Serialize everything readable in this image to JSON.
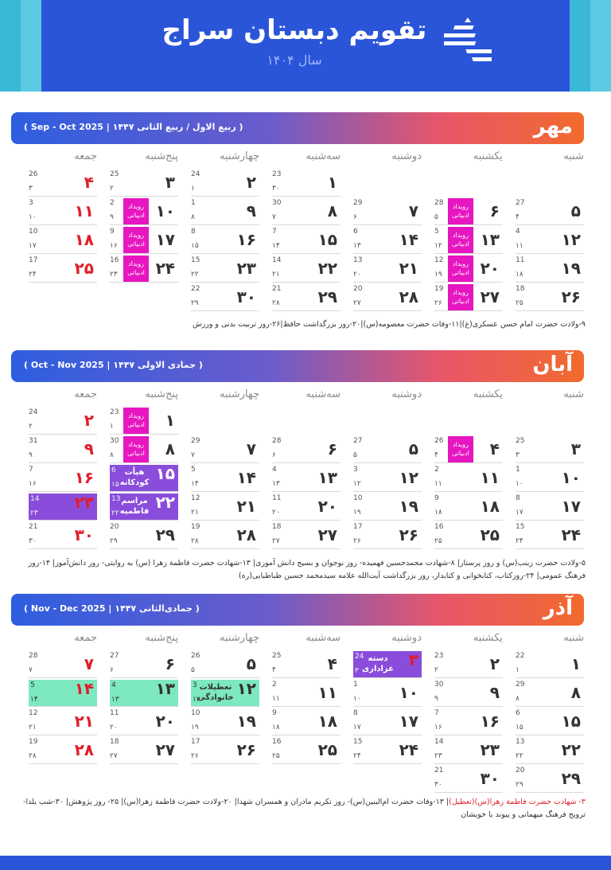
{
  "header": {
    "title": "تقویم دبستان سراج",
    "year": "سال ۱۴۰۴"
  },
  "weekdays": [
    "شنبه",
    "یکشنبه",
    "دوشنبه",
    "سه‌شنبه",
    "چهارشنبه",
    "پنج‌شنبه",
    "جمعه"
  ],
  "months": [
    {
      "name": "مهر",
      "info": "( ربیع الاول / ربیع الثانی ۱۴۴۷ | Sep - Oct 2025 )",
      "note": "۹-ولادت حضرت امام حسن عسکری(ع)|۱۱-وفات حضرت معصومه(س)|۲۰-روز بزرگداشت حافظ|۲۶-روز تربیت بدنی و ورزش"
    },
    {
      "name": "آبان",
      "info": "( جمادی الاولی ۱۴۴۷ | Oct - Nov 2025 )",
      "note": "۵-ولادت حضرت زینب(س) و روز پرستار| ۸-شهادت محمدحسین فهمیده- روز نوجوان و بسیج دانش آموزی| ۱۳-شهادت حضرت فاطمة زهرا (س) به روایتی- روز دانش‌آموز| ۱۴-روز فرهنگ عمومی| ۲۴-روزکتاب، کتابخوانی و کتابدار، روز بزرگداشت آیت‌الله علامه سیدمحمد حسین طباطبایی(ره)"
    },
    {
      "name": "آذر",
      "info": "( جمادی‌الثانی ۱۴۴۷ | Nov - Dec 2025 )",
      "note_red": "۳- شهادت حضرت فاطمة زهرا(س)(تعطیل)",
      "note": "| ۱۳-وفات حضرت ام‌البنین(س)- روز تکریم مادران و همسران شهدا| ۲۰-ولادت حضرت فاطمة زهرا(س)| ۲۵- روز پژوهش| ۳۰-شب یلدا- ترویج فرهنگ میهمانی و پیوند با خویشان"
    }
  ],
  "tags": {
    "event": "رویداد ادبیاتی",
    "kids": "هیأت کودکانه",
    "ceremony": "مراسم فاطمیه",
    "holiday_label": "تعطیلات خانوادگی",
    "mourning": "دسته عزاداری"
  },
  "mehr_cells": [
    {
      "c": 0,
      "r": 1,
      "d": "۵",
      "g": "27",
      "h": "۴"
    },
    {
      "c": 1,
      "r": 1,
      "d": "۶",
      "g": "28",
      "h": "۵",
      "tag": true
    },
    {
      "c": 2,
      "r": 1,
      "d": "۷",
      "g": "29",
      "h": "۶"
    },
    {
      "c": 3,
      "r": 0,
      "d": "۱",
      "g": "23",
      "h": "۳۰"
    },
    {
      "c": 3,
      "r": 1,
      "d": "۸",
      "g": "30",
      "h": "۷"
    },
    {
      "c": 4,
      "r": 0,
      "d": "۲",
      "g": "24",
      "h": "۱"
    },
    {
      "c": 4,
      "r": 1,
      "d": "۹",
      "g": "1",
      "h": "۸"
    },
    {
      "c": 5,
      "r": 0,
      "d": "۳",
      "g": "25",
      "h": "۲"
    },
    {
      "c": 5,
      "r": 1,
      "d": "۱۰",
      "g": "2",
      "h": "۹",
      "tag": true
    },
    {
      "c": 6,
      "r": 0,
      "d": "۴",
      "g": "26",
      "h": "۳",
      "hol": true
    },
    {
      "c": 6,
      "r": 1,
      "d": "۱۱",
      "g": "3",
      "h": "۱۰",
      "hol": true
    },
    {
      "c": 0,
      "r": 2,
      "d": "۱۲",
      "g": "4",
      "h": "۱۱"
    },
    {
      "c": 1,
      "r": 2,
      "d": "۱۳",
      "g": "5",
      "h": "۱۲",
      "tag": true
    },
    {
      "c": 2,
      "r": 2,
      "d": "۱۴",
      "g": "6",
      "h": "۱۳"
    },
    {
      "c": 3,
      "r": 2,
      "d": "۱۵",
      "g": "7",
      "h": "۱۴"
    },
    {
      "c": 4,
      "r": 2,
      "d": "۱۶",
      "g": "8",
      "h": "۱۵"
    },
    {
      "c": 5,
      "r": 2,
      "d": "۱۷",
      "g": "9",
      "h": "۱۶",
      "tag": true
    },
    {
      "c": 6,
      "r": 2,
      "d": "۱۸",
      "g": "10",
      "h": "۱۷",
      "hol": true
    },
    {
      "c": 0,
      "r": 3,
      "d": "۱۹",
      "g": "11",
      "h": "۱۸"
    },
    {
      "c": 1,
      "r": 3,
      "d": "۲۰",
      "g": "12",
      "h": "۱۹",
      "tag": true
    },
    {
      "c": 2,
      "r": 3,
      "d": "۲۱",
      "g": "13",
      "h": "۲۰"
    },
    {
      "c": 3,
      "r": 3,
      "d": "۲۲",
      "g": "14",
      "h": "۲۱"
    },
    {
      "c": 4,
      "r": 3,
      "d": "۲۳",
      "g": "15",
      "h": "۲۲"
    },
    {
      "c": 5,
      "r": 3,
      "d": "۲۴",
      "g": "16",
      "h": "۲۳",
      "tag": true
    },
    {
      "c": 6,
      "r": 3,
      "d": "۲۵",
      "g": "17",
      "h": "۲۴",
      "hol": true
    },
    {
      "c": 0,
      "r": 4,
      "d": "۲۶",
      "g": "18",
      "h": "۲۵"
    },
    {
      "c": 1,
      "r": 4,
      "d": "۲۷",
      "g": "19",
      "h": "۲۶",
      "tag": true
    },
    {
      "c": 2,
      "r": 4,
      "d": "۲۸",
      "g": "20",
      "h": "۲۷"
    },
    {
      "c": 3,
      "r": 4,
      "d": "۲۹",
      "g": "21",
      "h": "۲۸"
    },
    {
      "c": 4,
      "r": 4,
      "d": "۳۰",
      "g": "22",
      "h": "۲۹"
    }
  ],
  "aban_cells": [
    {
      "c": 0,
      "r": 0,
      "d": "۳",
      "g": "25",
      "h": "۳"
    },
    {
      "c": 1,
      "r": 0,
      "d": "۴",
      "g": "26",
      "h": "۴",
      "tag": true
    },
    {
      "c": 2,
      "r": 0,
      "d": "۵",
      "g": "27",
      "h": "۵"
    },
    {
      "c": 3,
      "r": 0,
      "d": "۶",
      "g": "28",
      "h": "۶"
    },
    {
      "c": 4,
      "r": 0,
      "d": "۷",
      "g": "29",
      "h": "۷"
    },
    {
      "c": 5,
      "r": 0,
      "d": "۸",
      "g": "30",
      "h": "۸",
      "tag": true
    },
    {
      "c": 6,
      "r": 0,
      "d": "۹",
      "g": "31",
      "h": "۹",
      "hol": true
    },
    {
      "c": 5,
      "r": -1,
      "d": "۱",
      "g": "23",
      "h": "۱",
      "tag": true
    },
    {
      "c": 6,
      "r": -1,
      "d": "۲",
      "g": "24",
      "h": "۲",
      "hol": true
    },
    {
      "c": 0,
      "r": 1,
      "d": "۱۰",
      "g": "1",
      "h": "۱۰"
    },
    {
      "c": 1,
      "r": 1,
      "d": "۱۱",
      "g": "2",
      "h": "۱۱"
    },
    {
      "c": 2,
      "r": 1,
      "d": "۱۲",
      "g": "3",
      "h": "۱۲"
    },
    {
      "c": 3,
      "r": 1,
      "d": "۱۳",
      "g": "4",
      "h": "۱۳"
    },
    {
      "c": 4,
      "r": 1,
      "d": "۱۴",
      "g": "5",
      "h": "۱۴"
    },
    {
      "c": 5,
      "r": 1,
      "d": "۱۵",
      "g": "6",
      "h": "۱۵",
      "band": "purple",
      "label": "kids"
    },
    {
      "c": 6,
      "r": 1,
      "d": "۱۶",
      "g": "7",
      "h": "۱۶",
      "hol": true
    },
    {
      "c": 0,
      "r": 2,
      "d": "۱۷",
      "g": "8",
      "h": "۱۷"
    },
    {
      "c": 1,
      "r": 2,
      "d": "۱۸",
      "g": "9",
      "h": "۱۸"
    },
    {
      "c": 2,
      "r": 2,
      "d": "۱۹",
      "g": "10",
      "h": "۱۹"
    },
    {
      "c": 3,
      "r": 2,
      "d": "۲۰",
      "g": "11",
      "h": "۲۰"
    },
    {
      "c": 4,
      "r": 2,
      "d": "۲۱",
      "g": "12",
      "h": "۲۱"
    },
    {
      "c": 5,
      "r": 2,
      "d": "۲۲",
      "g": "13",
      "h": "۲۲",
      "band": "purple",
      "label": "ceremony"
    },
    {
      "c": 6,
      "r": 2,
      "d": "۲۳",
      "g": "14",
      "h": "۲۳",
      "band": "purple",
      "hol": true
    },
    {
      "c": 0,
      "r": 3,
      "d": "۲۴",
      "g": "15",
      "h": "۲۴"
    },
    {
      "c": 1,
      "r": 3,
      "d": "۲۵",
      "g": "16",
      "h": "۲۵"
    },
    {
      "c": 2,
      "r": 3,
      "d": "۲۶",
      "g": "17",
      "h": "۲۶"
    },
    {
      "c": 3,
      "r": 3,
      "d": "۲۷",
      "g": "18",
      "h": "۲۷"
    },
    {
      "c": 4,
      "r": 3,
      "d": "۲۸",
      "g": "19",
      "h": "۲۸"
    },
    {
      "c": 5,
      "r": 3,
      "d": "۲۹",
      "g": "20",
      "h": "۲۹"
    },
    {
      "c": 6,
      "r": 3,
      "d": "۳۰",
      "g": "21",
      "h": "۳۰",
      "hol": true
    }
  ],
  "azar_cells": [
    {
      "c": 0,
      "r": 0,
      "d": "۱",
      "g": "22",
      "h": "۱"
    },
    {
      "c": 1,
      "r": 0,
      "d": "۲",
      "g": "23",
      "h": "۲"
    },
    {
      "c": 2,
      "r": 0,
      "d": "۳",
      "g": "24",
      "h": "۳",
      "band": "purple",
      "label": "mourning",
      "hol": true
    },
    {
      "c": 3,
      "r": 0,
      "d": "۴",
      "g": "25",
      "h": "۴"
    },
    {
      "c": 4,
      "r": 0,
      "d": "۵",
      "g": "26",
      "h": "۵"
    },
    {
      "c": 5,
      "r": 0,
      "d": "۶",
      "g": "27",
      "h": "۶"
    },
    {
      "c": 6,
      "r": 0,
      "d": "۷",
      "g": "28",
      "h": "۷",
      "hol": true
    },
    {
      "c": 0,
      "r": 1,
      "d": "۸",
      "g": "29",
      "h": "۸"
    },
    {
      "c": 1,
      "r": 1,
      "d": "۹",
      "g": "30",
      "h": "۹"
    },
    {
      "c": 2,
      "r": 1,
      "d": "۱۰",
      "g": "1",
      "h": "۱۰"
    },
    {
      "c": 3,
      "r": 1,
      "d": "۱۱",
      "g": "2",
      "h": "۱۱"
    },
    {
      "c": 4,
      "r": 1,
      "d": "۱۲",
      "g": "3",
      "h": "۱۲",
      "band": "mint",
      "label": "holiday_label"
    },
    {
      "c": 5,
      "r": 1,
      "d": "۱۳",
      "g": "4",
      "h": "۱۳",
      "band": "mint"
    },
    {
      "c": 6,
      "r": 1,
      "d": "۱۴",
      "g": "5",
      "h": "۱۴",
      "band": "mint",
      "hol": true
    },
    {
      "c": 0,
      "r": 2,
      "d": "۱۵",
      "g": "6",
      "h": "۱۵"
    },
    {
      "c": 1,
      "r": 2,
      "d": "۱۶",
      "g": "7",
      "h": "۱۶"
    },
    {
      "c": 2,
      "r": 2,
      "d": "۱۷",
      "g": "8",
      "h": "۱۷"
    },
    {
      "c": 3,
      "r": 2,
      "d": "۱۸",
      "g": "9",
      "h": "۱۸"
    },
    {
      "c": 4,
      "r": 2,
      "d": "۱۹",
      "g": "10",
      "h": "۱۹"
    },
    {
      "c": 5,
      "r": 2,
      "d": "۲۰",
      "g": "11",
      "h": "۲۰"
    },
    {
      "c": 6,
      "r": 2,
      "d": "۲۱",
      "g": "12",
      "h": "۲۱",
      "hol": true
    },
    {
      "c": 0,
      "r": 3,
      "d": "۲۲",
      "g": "13",
      "h": "۲۲"
    },
    {
      "c": 1,
      "r": 3,
      "d": "۲۳",
      "g": "14",
      "h": "۲۳"
    },
    {
      "c": 2,
      "r": 3,
      "d": "۲۴",
      "g": "15",
      "h": "۲۴"
    },
    {
      "c": 3,
      "r": 3,
      "d": "۲۵",
      "g": "16",
      "h": "۲۵"
    },
    {
      "c": 4,
      "r": 3,
      "d": "۲۶",
      "g": "17",
      "h": "۲۶"
    },
    {
      "c": 5,
      "r": 3,
      "d": "۲۷",
      "g": "18",
      "h": "۲۷"
    },
    {
      "c": 6,
      "r": 3,
      "d": "۲۸",
      "g": "19",
      "h": "۲۸",
      "hol": true
    },
    {
      "c": 0,
      "r": 4,
      "d": "۲۹",
      "g": "20",
      "h": "۲۹"
    },
    {
      "c": 1,
      "r": 4,
      "d": "۳۰",
      "g": "21",
      "h": "۳۰"
    }
  ]
}
